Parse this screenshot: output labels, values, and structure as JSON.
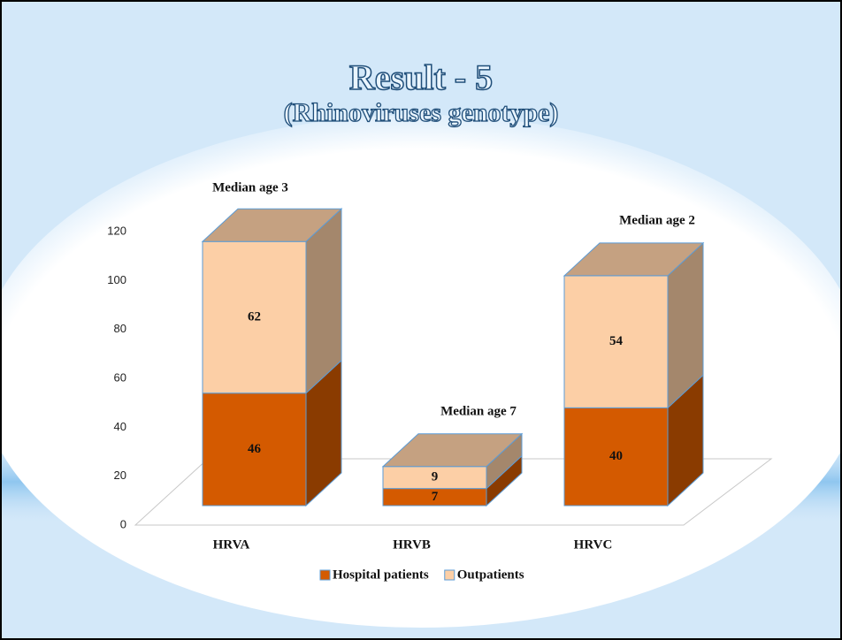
{
  "chart_data": {
    "type": "bar3d_stacked",
    "title": "Result - 5",
    "subtitle": "(Rhinoviruses genotype)",
    "categories": [
      "HRVA",
      "HRVB",
      "HRVC"
    ],
    "series": [
      {
        "name": "Hospital patients",
        "color": "#d45a00",
        "values": [
          46,
          7,
          40
        ]
      },
      {
        "name": "Outpatients",
        "color": "#fccfa6",
        "values": [
          62,
          9,
          54
        ]
      }
    ],
    "annotations": [
      "Median age 3",
      "Median age 7",
      "Median age 2"
    ],
    "ylim": [
      0,
      120
    ],
    "yticks": [
      0,
      20,
      40,
      60,
      80,
      100,
      120
    ],
    "grid": false
  }
}
